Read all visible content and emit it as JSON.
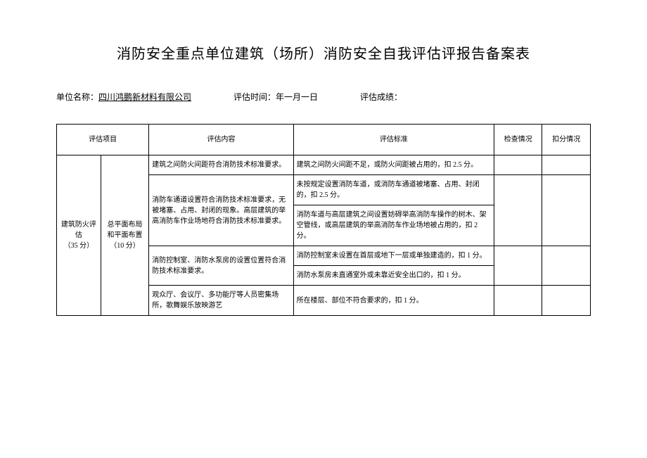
{
  "title": "消防安全重点单位建筑（场所）消防安全自我评估评报告备案表",
  "meta": {
    "unit_label": "单位名称：",
    "unit_name": "四川鸿鹏新材料有限公司",
    "time_label": "评估时间：年一月一日",
    "score_label": "评估成绩："
  },
  "headers": {
    "category": "评估项目",
    "content": "评估内容",
    "standard": "评估标准",
    "check": "检查情况",
    "deduct": "扣分情况"
  },
  "category1": {
    "name": "建筑防火评估",
    "score": "（35 分）"
  },
  "category2": {
    "name": "总平面布局和平面布置",
    "score": "（10 分）"
  },
  "rows": [
    {
      "content": "建筑之间防火间距符合消防技术标准要求。",
      "standard": "建筑之间防火间距不足，或防火间距被占用的，扣 2.5 分。"
    },
    {
      "content": "消防车通道设置符合消防技术标准要求，无被堵塞、占用、封闭的现象。高层建筑的举高消防车作业场地符合消防技术标准要求。",
      "standards": [
        "未按规定设置消防车道，或消防车通道被堵塞、占用、封闭的，扣 2.5 分。",
        "消防车道与高层建筑之间设置妨碍举高消防车操作的树木、架空管线，或高层建筑的举高消防车作业场地被占用的，扣 2 分。"
      ]
    },
    {
      "content": "消防控制室、消防水泵房的设置位置符合消防技术标准要求。",
      "standards": [
        "消防控制室未设置在首层或地下一层或单独建造的，扣 1 分。",
        "消防水泵房未直通室外或未靠近安全出口的，扣 1 分。"
      ]
    },
    {
      "content": "观众厅、会议厅、多功能厅等人员密集场所，歌舞娱乐放映游艺",
      "standard": "所在楼层、部位不符合要求的，扣 1 分。"
    }
  ],
  "colors": {
    "background": "#ffffff",
    "text": "#000000",
    "border": "#000000"
  },
  "typography": {
    "title_fontsize": 20,
    "meta_fontsize": 12,
    "table_fontsize": 10,
    "font_family": "SimSun"
  }
}
